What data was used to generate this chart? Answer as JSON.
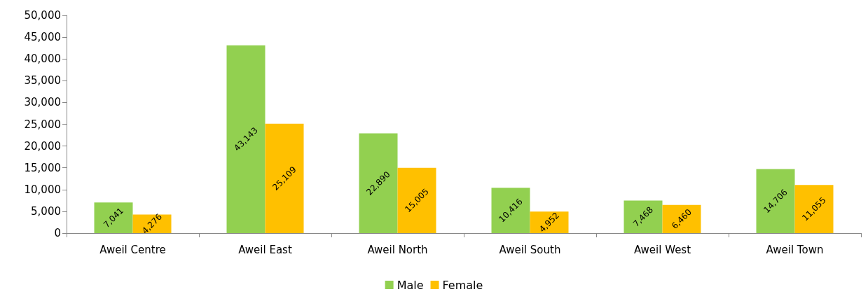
{
  "chart_data": {
    "type": "bar",
    "categories": [
      "Aweil Centre",
      "Aweil East",
      "Aweil North",
      "Aweil South",
      "Aweil West",
      "Aweil Town"
    ],
    "series": [
      {
        "name": "Male",
        "color": "#92d050",
        "values": [
          7041,
          43143,
          22890,
          10416,
          7468,
          14706
        ],
        "value_labels": [
          "7,041",
          "43,143",
          "22,890",
          "10,416",
          "7,468",
          "14,706"
        ]
      },
      {
        "name": "Female",
        "color": "#ffc000",
        "values": [
          4276,
          25109,
          15005,
          4952,
          6460,
          11055
        ],
        "value_labels": [
          "4,276",
          "25,109",
          "15,005",
          "4,952",
          "6,460",
          "11,055"
        ]
      }
    ],
    "ylim": [
      0,
      50000
    ],
    "yticks": [
      0,
      {
        "value": 5000,
        "label": "5,000"
      },
      {
        "value": 10000,
        "label": "10,000"
      },
      {
        "value": 15000,
        "label": "15,000"
      },
      {
        "value": 20000,
        "label": "20,000"
      },
      {
        "value": 25000,
        "label": "25,000"
      },
      {
        "value": 30000,
        "label": "30,000"
      },
      {
        "value": 35000,
        "label": "35,000"
      },
      {
        "value": 40000,
        "label": "40,000"
      },
      {
        "value": 45000,
        "label": "45,000"
      },
      {
        "value": 50000,
        "label": "50,000"
      }
    ],
    "grid": false,
    "legend": "bottom"
  }
}
